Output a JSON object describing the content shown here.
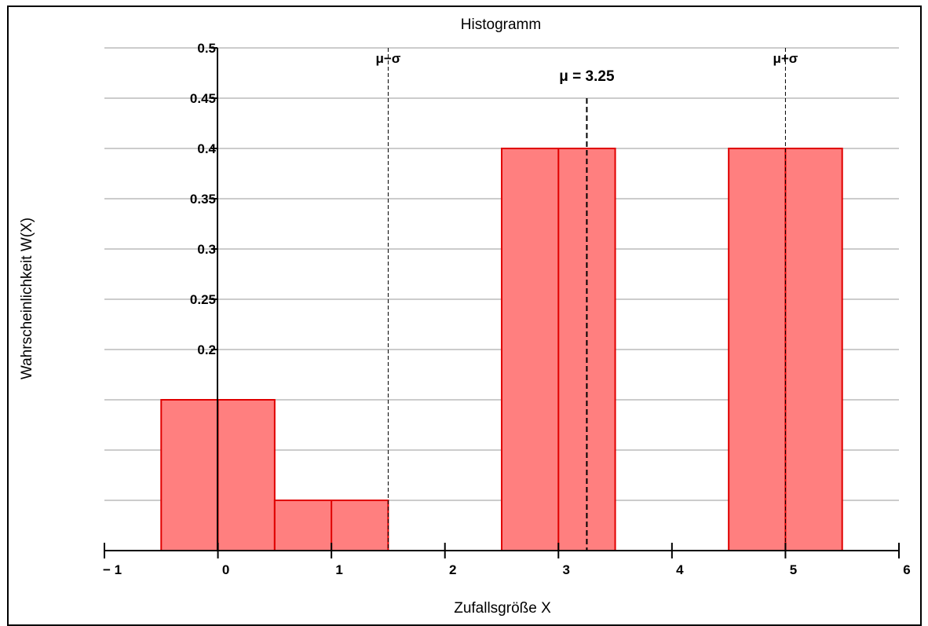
{
  "chart_data": {
    "type": "bar",
    "title": "Histogramm",
    "xlabel": "Zufallsgröße X",
    "ylabel": "Wahrscheinlichkeit W(X)",
    "xlim": [
      -1,
      6
    ],
    "ylim": [
      0,
      0.5
    ],
    "x_ticks": [
      -1,
      0,
      1,
      2,
      3,
      4,
      5,
      6
    ],
    "x_tick_labels": [
      "− 1",
      "0",
      "1",
      "2",
      "3",
      "4",
      "5",
      "6"
    ],
    "y_ticks": [
      0.2,
      0.25,
      0.3,
      0.35,
      0.4,
      0.45,
      0.5
    ],
    "y_tick_labels": [
      "0.2",
      "0.25",
      "0.3",
      "0.35",
      "0.4",
      "0.45",
      "0.5"
    ],
    "grid": true,
    "bar_color": "#ff7f7f",
    "bar_edge_color": "#e00000",
    "series": [
      {
        "x": [
          0,
          1,
          2,
          3,
          4,
          5
        ],
        "values": [
          0.15,
          0.05,
          0.0,
          0.4,
          0.0,
          0.4
        ]
      }
    ],
    "annotations": [
      {
        "label": "μ−σ",
        "x": 1.5,
        "y_top": 0.5,
        "text_y": 0.485,
        "size": 17
      },
      {
        "label": "μ = 3.25",
        "x": 3.25,
        "y_top": 0.45,
        "text_y": 0.467,
        "size": 19
      },
      {
        "label": "μ+σ",
        "x": 5.0,
        "y_top": 0.5,
        "text_y": 0.485,
        "size": 17
      }
    ]
  }
}
